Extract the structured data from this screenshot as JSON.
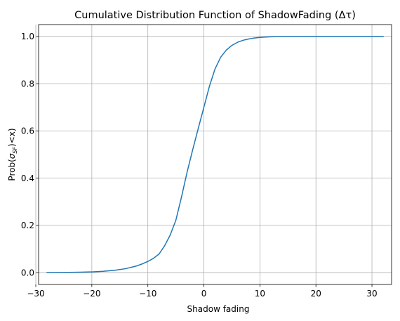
{
  "chart_data": {
    "type": "line",
    "title": "Cumulative Distribution Function of ShadowFading (Δτ)",
    "xlabel": "Shadow fading",
    "ylabel": "Prob(σ_SF)<x)",
    "ylabel_parts": {
      "before": "Prob(",
      "sigma": "σ",
      "sub": "SF",
      "after": ")<x)"
    },
    "xlim": [
      -29.5,
      33.5
    ],
    "ylim": [
      -0.05,
      1.05
    ],
    "xticks": [
      -30,
      -20,
      -10,
      0,
      10,
      20,
      30
    ],
    "yticks": [
      0.0,
      0.2,
      0.4,
      0.6,
      0.8,
      1.0
    ],
    "xtick_labels": [
      "−30",
      "−20",
      "−10",
      "0",
      "10",
      "20",
      "30"
    ],
    "ytick_labels": [
      "0.0",
      "0.2",
      "0.4",
      "0.6",
      "0.8",
      "1.0"
    ],
    "grid": true,
    "line_color": "#1f77b4",
    "series": [
      {
        "x": [
          -28,
          -26,
          -24,
          -22,
          -20,
          -18,
          -16,
          -14,
          -12,
          -11,
          -10,
          -9,
          -8,
          -7,
          -6,
          -5,
          -4,
          -3,
          -2,
          -1,
          0,
          1,
          2,
          3,
          4,
          5,
          6,
          7,
          8,
          9,
          10,
          11,
          12,
          14,
          16,
          18,
          20,
          22,
          24,
          26,
          28,
          30,
          32
        ],
        "y": [
          0.0003,
          0.0006,
          0.0011,
          0.0019,
          0.0033,
          0.0057,
          0.0098,
          0.0167,
          0.0285,
          0.037,
          0.0474,
          0.0606,
          0.0789,
          0.114,
          0.16,
          0.222,
          0.32,
          0.425,
          0.52,
          0.611,
          0.7,
          0.79,
          0.863,
          0.912,
          0.942,
          0.962,
          0.975,
          0.9836,
          0.989,
          0.9933,
          0.9956,
          0.9972,
          0.9982,
          0.9993,
          0.9997,
          0.9999,
          1.0,
          1.0,
          1.0,
          1.0,
          1.0,
          1.0,
          1.0
        ]
      }
    ]
  }
}
